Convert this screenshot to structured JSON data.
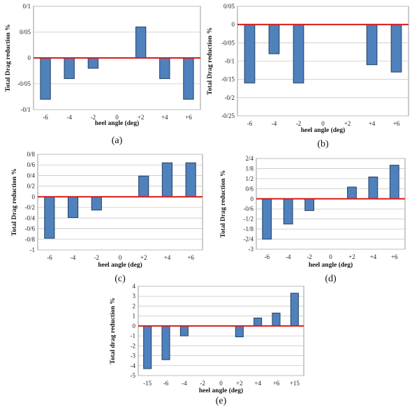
{
  "colors": {
    "bar": "#4f81bd",
    "bar_edge": "#24415f",
    "zero_line": "#d61c1c",
    "grid": "#c8c8c8"
  },
  "chart_data": [
    {
      "id": "a",
      "type": "bar",
      "caption": "(a)",
      "ylabel": "Total Drag reduction %",
      "xlabel": "heel angle (deg)",
      "categories": [
        "-6",
        "-4",
        "-2",
        "0",
        "+2",
        "+4",
        "+6"
      ],
      "values": [
        -0.08,
        -0.04,
        -0.02,
        null,
        0.06,
        -0.04,
        -0.08
      ],
      "ylim": [
        -0.1,
        0.1
      ],
      "yticks": [
        0.1,
        0.05,
        0,
        -0.05,
        -0.1
      ],
      "ytick_labels": [
        "0/1",
        "0/05",
        "0",
        "-0/05",
        "-0/1"
      ]
    },
    {
      "id": "b",
      "type": "bar",
      "caption": "(b)",
      "ylabel": "Total Drag reduction %",
      "xlabel": "heel angle (deg)",
      "categories": [
        "-6",
        "-4",
        "-2",
        "0",
        "+2",
        "+4",
        "+6"
      ],
      "values": [
        -0.16,
        -0.08,
        -0.16,
        null,
        null,
        -0.11,
        -0.13
      ],
      "ylim": [
        -0.25,
        0.05
      ],
      "yticks": [
        0.05,
        0,
        -0.05,
        -0.1,
        -0.15,
        -0.2,
        -0.25
      ],
      "ytick_labels": [
        "0/05",
        "0",
        "-0/05",
        "-0/1",
        "-0/15",
        "-0/2",
        "-0/25"
      ]
    },
    {
      "id": "c",
      "type": "bar",
      "caption": "(c)",
      "ylabel": "Total Drag reduction %",
      "xlabel": "heel angle (deg)",
      "categories": [
        "-6",
        "-4",
        "-2",
        "0",
        "+2",
        "+4",
        "+6"
      ],
      "values": [
        -0.78,
        -0.39,
        -0.25,
        null,
        0.39,
        0.64,
        0.64
      ],
      "ylim": [
        -1,
        0.8
      ],
      "yticks": [
        0.8,
        0.6,
        0.4,
        0.2,
        0,
        -0.2,
        -0.4,
        -0.6,
        -0.8,
        -1
      ],
      "ytick_labels": [
        "0/8",
        "0/6",
        "0/4",
        "0/2",
        "0",
        "-0/2",
        "-0/4",
        "-0/6",
        "-0/8",
        "-1"
      ]
    },
    {
      "id": "d",
      "type": "bar",
      "caption": "(d)",
      "ylabel": "Total Drag reduction %",
      "xlabel": "heel angle (deg)",
      "categories": [
        "-6",
        "-4",
        "-2",
        "0",
        "+2",
        "+4",
        "+6"
      ],
      "values": [
        -2.4,
        -1.5,
        -0.7,
        null,
        0.7,
        1.3,
        2.0
      ],
      "ylim": [
        -3,
        2.4
      ],
      "yticks": [
        2.4,
        1.8,
        1.2,
        0.6,
        0,
        -0.6,
        -1.2,
        -1.8,
        -2.4,
        -3
      ],
      "ytick_labels": [
        "2/4",
        "1/8",
        "1/2",
        "0/6",
        "0",
        "-0/6",
        "-1/2",
        "-1/8",
        "-2/4",
        "-3"
      ]
    },
    {
      "id": "e",
      "type": "bar",
      "caption": "(e)",
      "ylabel": "Total drag reduction %",
      "xlabel": "heel angle (deg)",
      "categories": [
        "-15",
        "-6",
        "-4",
        "-2",
        "0",
        "+2",
        "+4",
        "+6",
        "+15"
      ],
      "values": [
        -4.3,
        -3.4,
        -1.0,
        null,
        null,
        -1.1,
        0.8,
        1.3,
        3.3
      ],
      "ylim": [
        -5,
        4
      ],
      "yticks": [
        4,
        3,
        2,
        1,
        0,
        -1,
        -2,
        -3,
        -4,
        -5
      ],
      "ytick_labels": [
        "4",
        "3",
        "2",
        "1",
        "0",
        "-1",
        "-2",
        "-3",
        "-4",
        "-5"
      ]
    }
  ]
}
